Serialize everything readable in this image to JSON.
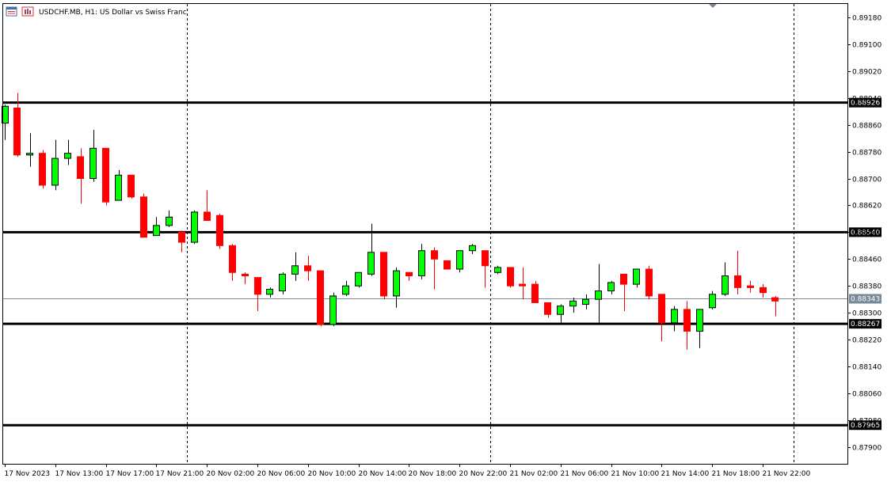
{
  "window": {
    "title": "USDCHF.MB, H1:  US Dollar vs Swiss Franc"
  },
  "icons": [
    "chart-list-icon",
    "chart-bars-icon"
  ],
  "colors": {
    "bull": "#00ff00",
    "bear": "#ff0000",
    "outline": "#000000",
    "bid_line": "#778899",
    "border": "#000000",
    "background": "#ffffff"
  },
  "chart_data": {
    "type": "candlestick",
    "symbol": "USDCHF.MB",
    "timeframe": "H1",
    "description": "US Dollar vs Swiss Franc",
    "ylim": [
      0.8785,
      0.8922
    ],
    "y_ticks": [
      0.8918,
      0.891,
      0.8902,
      0.8894,
      0.8886,
      0.8878,
      0.887,
      0.8862,
      0.8854,
      0.8846,
      0.8838,
      0.883,
      0.8822,
      0.8814,
      0.8806,
      0.8798,
      0.879
    ],
    "y_tick_labels": [
      "0.89180",
      "0.89100",
      "0.89020",
      "0.88940",
      "0.88860",
      "0.88780",
      "0.88700",
      "0.88620",
      "0.88540",
      "0.88460",
      "0.88380",
      "0.88300",
      "0.88220",
      "0.88140",
      "0.88060",
      "0.87980",
      "0.87900"
    ],
    "x_tick_labels": [
      "17 Nov 2023",
      "17 Nov 13:00",
      "17 Nov 17:00",
      "17 Nov 21:00",
      "20 Nov 02:00",
      "20 Nov 06:00",
      "20 Nov 10:00",
      "20 Nov 14:00",
      "20 Nov 18:00",
      "20 Nov 22:00",
      "21 Nov 02:00",
      "21 Nov 06:00",
      "21 Nov 10:00",
      "21 Nov 14:00",
      "21 Nov 18:00",
      "21 Nov 22:00"
    ],
    "horizontal_levels": [
      {
        "value": 0.88926,
        "label": "0.88926"
      },
      {
        "value": 0.8854,
        "label": "0.88540"
      },
      {
        "value": 0.88267,
        "label": "0.88267"
      },
      {
        "value": 0.87965,
        "label": "0.87965"
      }
    ],
    "bid": {
      "value": 0.88343,
      "label": "0.88343"
    },
    "period_separators": [
      "17 Nov 21:00",
      "20 Nov 22:00",
      "21 Nov 22:00"
    ],
    "candles": [
      {
        "o": 0.88865,
        "h": 0.8892,
        "l": 0.88815,
        "c": 0.88915
      },
      {
        "o": 0.8891,
        "h": 0.88955,
        "l": 0.88765,
        "c": 0.8877
      },
      {
        "o": 0.8877,
        "h": 0.88835,
        "l": 0.88735,
        "c": 0.88775
      },
      {
        "o": 0.88775,
        "h": 0.88785,
        "l": 0.8867,
        "c": 0.8868
      },
      {
        "o": 0.8868,
        "h": 0.88815,
        "l": 0.88665,
        "c": 0.8876
      },
      {
        "o": 0.8876,
        "h": 0.88815,
        "l": 0.8874,
        "c": 0.88775
      },
      {
        "o": 0.88765,
        "h": 0.8879,
        "l": 0.88625,
        "c": 0.887
      },
      {
        "o": 0.887,
        "h": 0.88845,
        "l": 0.8869,
        "c": 0.8879
      },
      {
        "o": 0.8879,
        "h": 0.8879,
        "l": 0.8862,
        "c": 0.8863
      },
      {
        "o": 0.88635,
        "h": 0.88725,
        "l": 0.88635,
        "c": 0.8871
      },
      {
        "o": 0.8871,
        "h": 0.8871,
        "l": 0.8864,
        "c": 0.88645
      },
      {
        "o": 0.88645,
        "h": 0.88655,
        "l": 0.88525,
        "c": 0.88525
      },
      {
        "o": 0.8853,
        "h": 0.88585,
        "l": 0.8853,
        "c": 0.8856
      },
      {
        "o": 0.8856,
        "h": 0.88605,
        "l": 0.88555,
        "c": 0.88585
      },
      {
        "o": 0.8854,
        "h": 0.88545,
        "l": 0.8848,
        "c": 0.8851
      },
      {
        "o": 0.8851,
        "h": 0.88605,
        "l": 0.88505,
        "c": 0.886
      },
      {
        "o": 0.886,
        "h": 0.88665,
        "l": 0.88575,
        "c": 0.88575
      },
      {
        "o": 0.8859,
        "h": 0.88595,
        "l": 0.8849,
        "c": 0.885
      },
      {
        "o": 0.885,
        "h": 0.88505,
        "l": 0.88395,
        "c": 0.8842
      },
      {
        "o": 0.88415,
        "h": 0.8842,
        "l": 0.88385,
        "c": 0.8841
      },
      {
        "o": 0.88405,
        "h": 0.88405,
        "l": 0.88305,
        "c": 0.88355
      },
      {
        "o": 0.88355,
        "h": 0.88375,
        "l": 0.88345,
        "c": 0.8837
      },
      {
        "o": 0.88365,
        "h": 0.8842,
        "l": 0.88355,
        "c": 0.88415
      },
      {
        "o": 0.88415,
        "h": 0.8848,
        "l": 0.88395,
        "c": 0.8844
      },
      {
        "o": 0.8844,
        "h": 0.8847,
        "l": 0.88395,
        "c": 0.88425
      },
      {
        "o": 0.88425,
        "h": 0.88425,
        "l": 0.8826,
        "c": 0.88265
      },
      {
        "o": 0.88265,
        "h": 0.8836,
        "l": 0.8826,
        "c": 0.8835
      },
      {
        "o": 0.88355,
        "h": 0.88395,
        "l": 0.8835,
        "c": 0.8838
      },
      {
        "o": 0.8838,
        "h": 0.8842,
        "l": 0.88375,
        "c": 0.8842
      },
      {
        "o": 0.88415,
        "h": 0.88565,
        "l": 0.8841,
        "c": 0.8848
      },
      {
        "o": 0.8848,
        "h": 0.8848,
        "l": 0.8834,
        "c": 0.8835
      },
      {
        "o": 0.8835,
        "h": 0.88435,
        "l": 0.88315,
        "c": 0.88425
      },
      {
        "o": 0.8842,
        "h": 0.8842,
        "l": 0.88395,
        "c": 0.8841
      },
      {
        "o": 0.8841,
        "h": 0.88505,
        "l": 0.884,
        "c": 0.88485
      },
      {
        "o": 0.88485,
        "h": 0.88495,
        "l": 0.8837,
        "c": 0.8846
      },
      {
        "o": 0.88455,
        "h": 0.88455,
        "l": 0.8843,
        "c": 0.8843
      },
      {
        "o": 0.8843,
        "h": 0.88485,
        "l": 0.8842,
        "c": 0.88485
      },
      {
        "o": 0.88485,
        "h": 0.88505,
        "l": 0.88475,
        "c": 0.885
      },
      {
        "o": 0.88485,
        "h": 0.88485,
        "l": 0.88375,
        "c": 0.8844
      },
      {
        "o": 0.8842,
        "h": 0.8844,
        "l": 0.88415,
        "c": 0.88435
      },
      {
        "o": 0.88435,
        "h": 0.88435,
        "l": 0.88375,
        "c": 0.8838
      },
      {
        "o": 0.88385,
        "h": 0.88435,
        "l": 0.8834,
        "c": 0.8838
      },
      {
        "o": 0.88385,
        "h": 0.88395,
        "l": 0.8833,
        "c": 0.8833
      },
      {
        "o": 0.8833,
        "h": 0.8833,
        "l": 0.88285,
        "c": 0.88295
      },
      {
        "o": 0.88295,
        "h": 0.88325,
        "l": 0.8827,
        "c": 0.8832
      },
      {
        "o": 0.8832,
        "h": 0.88345,
        "l": 0.883,
        "c": 0.88335
      },
      {
        "o": 0.88325,
        "h": 0.88355,
        "l": 0.8831,
        "c": 0.8834
      },
      {
        "o": 0.8834,
        "h": 0.88445,
        "l": 0.8827,
        "c": 0.88365
      },
      {
        "o": 0.88365,
        "h": 0.88395,
        "l": 0.88355,
        "c": 0.8839
      },
      {
        "o": 0.88415,
        "h": 0.88415,
        "l": 0.88305,
        "c": 0.88385
      },
      {
        "o": 0.88385,
        "h": 0.8843,
        "l": 0.88375,
        "c": 0.8843
      },
      {
        "o": 0.8843,
        "h": 0.8844,
        "l": 0.8834,
        "c": 0.8835
      },
      {
        "o": 0.88355,
        "h": 0.88355,
        "l": 0.88215,
        "c": 0.8827
      },
      {
        "o": 0.8827,
        "h": 0.8832,
        "l": 0.88245,
        "c": 0.8831
      },
      {
        "o": 0.8831,
        "h": 0.88335,
        "l": 0.8819,
        "c": 0.88245
      },
      {
        "o": 0.88245,
        "h": 0.8831,
        "l": 0.88195,
        "c": 0.8831
      },
      {
        "o": 0.88315,
        "h": 0.88365,
        "l": 0.8831,
        "c": 0.88355
      },
      {
        "o": 0.88355,
        "h": 0.8845,
        "l": 0.8835,
        "c": 0.8841
      },
      {
        "o": 0.8841,
        "h": 0.88485,
        "l": 0.88355,
        "c": 0.88375
      },
      {
        "o": 0.8838,
        "h": 0.88395,
        "l": 0.8836,
        "c": 0.88375
      },
      {
        "o": 0.88375,
        "h": 0.88385,
        "l": 0.88345,
        "c": 0.8836
      },
      {
        "o": 0.88345,
        "h": 0.8835,
        "l": 0.8829,
        "c": 0.88335
      }
    ]
  }
}
